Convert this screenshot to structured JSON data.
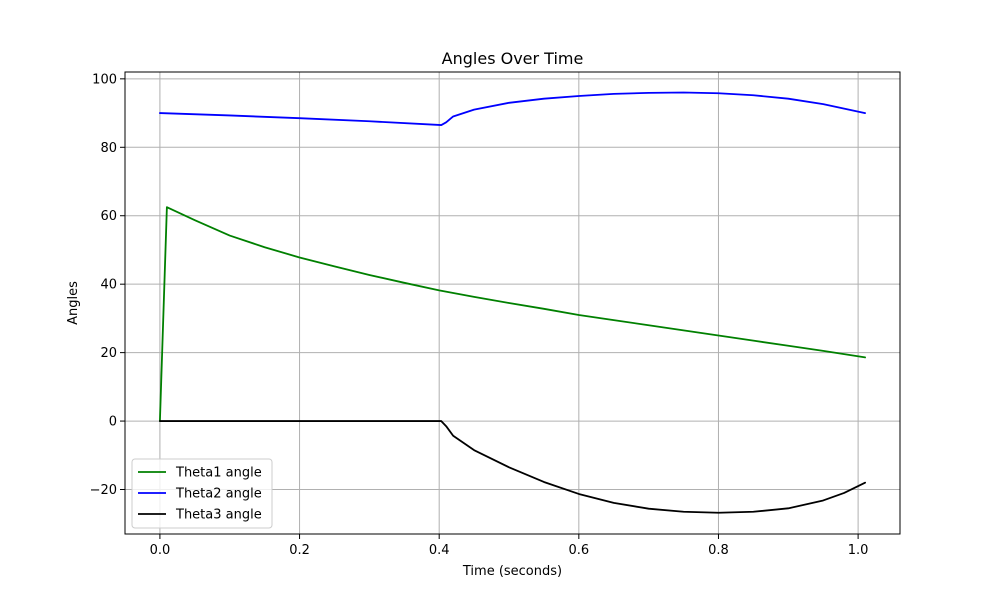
{
  "chart_data": {
    "type": "line",
    "title": "Angles Over Time",
    "xlabel": "Time (seconds)",
    "ylabel": "Angles",
    "xlim": [
      -0.05,
      1.06
    ],
    "ylim": [
      -33,
      102
    ],
    "xticks": [
      0.0,
      0.2,
      0.4,
      0.6,
      0.8,
      1.0
    ],
    "xtick_labels": [
      "0.0",
      "0.2",
      "0.4",
      "0.6",
      "0.8",
      "1.0"
    ],
    "yticks": [
      -20,
      0,
      20,
      40,
      60,
      80,
      100
    ],
    "ytick_labels": [
      "−20",
      "0",
      "20",
      "40",
      "60",
      "80",
      "100"
    ],
    "grid": true,
    "legend_position": "lower-left",
    "series": [
      {
        "name": "Theta1 angle",
        "color": "#008000",
        "x": [
          0.0,
          0.01,
          0.05,
          0.1,
          0.15,
          0.2,
          0.25,
          0.3,
          0.35,
          0.4,
          0.45,
          0.5,
          0.55,
          0.6,
          0.65,
          0.7,
          0.75,
          0.8,
          0.85,
          0.9,
          0.95,
          1.01
        ],
        "y": [
          0.0,
          62.5,
          58.7,
          54.2,
          50.8,
          47.8,
          45.2,
          42.7,
          40.4,
          38.2,
          36.3,
          34.5,
          32.8,
          31.0,
          29.5,
          28.0,
          26.5,
          25.0,
          23.5,
          22.0,
          20.5,
          18.6
        ]
      },
      {
        "name": "Theta2 angle",
        "color": "#0000ff",
        "x": [
          0.0,
          0.1,
          0.2,
          0.3,
          0.403,
          0.41,
          0.42,
          0.45,
          0.5,
          0.55,
          0.6,
          0.65,
          0.7,
          0.75,
          0.8,
          0.85,
          0.9,
          0.95,
          1.01
        ],
        "y": [
          90.0,
          89.3,
          88.5,
          87.6,
          86.5,
          87.3,
          89.0,
          91.0,
          93.0,
          94.2,
          95.0,
          95.6,
          95.9,
          96.0,
          95.8,
          95.2,
          94.2,
          92.6,
          90.0
        ]
      },
      {
        "name": "Theta3 angle",
        "color": "#000000",
        "x": [
          0.0,
          0.1,
          0.2,
          0.3,
          0.403,
          0.41,
          0.42,
          0.45,
          0.5,
          0.55,
          0.6,
          0.65,
          0.7,
          0.75,
          0.8,
          0.85,
          0.9,
          0.95,
          0.98,
          1.01
        ],
        "y": [
          0.0,
          0.0,
          0.0,
          0.0,
          0.0,
          -1.5,
          -4.3,
          -8.5,
          -13.5,
          -17.8,
          -21.3,
          -23.9,
          -25.6,
          -26.5,
          -26.8,
          -26.5,
          -25.5,
          -23.2,
          -21.0,
          -18.0
        ]
      }
    ]
  }
}
